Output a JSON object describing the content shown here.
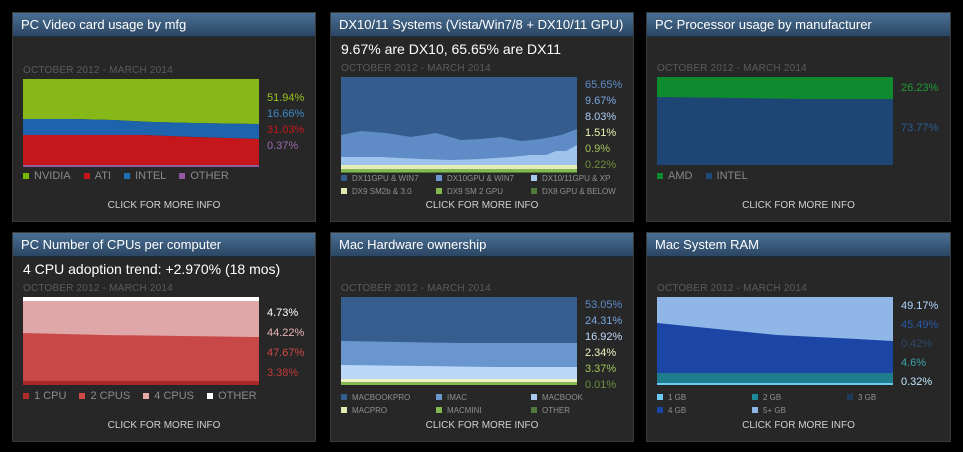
{
  "panels": [
    {
      "title": "PC Video card usage by mfg",
      "headline": "",
      "date_range": "OCTOBER 2012 - MARCH 2014",
      "values": [
        {
          "text": "51.94%",
          "color": "#9ac21d"
        },
        {
          "text": "16.66%",
          "color": "#3f87c8"
        },
        {
          "text": "31.03%",
          "color": "#c5171b"
        },
        {
          "text": "0.37%",
          "color": "#9b6aa8"
        }
      ],
      "legend": [
        {
          "label": "NVIDIA",
          "color": "#76b900"
        },
        {
          "label": "ATI",
          "color": "#c5171b"
        },
        {
          "label": "INTEL",
          "color": "#1f6fb7"
        },
        {
          "label": "OTHER",
          "color": "#8e5aa0"
        }
      ],
      "more": "CLICK FOR MORE INFO"
    },
    {
      "title": "DX10/11 Systems (Vista/Win7/8 + DX10/11 GPU)",
      "headline": "9.67% are DX10, 65.65% are DX11",
      "date_range": "OCTOBER 2012 - MARCH 2014",
      "values": [
        {
          "text": "65.65%",
          "color": "#5d8cc8"
        },
        {
          "text": "9.67%",
          "color": "#7aa7e0"
        },
        {
          "text": "8.03%",
          "color": "#a9cdf5"
        },
        {
          "text": "1.51%",
          "color": "#e8f0b0"
        },
        {
          "text": "0.9%",
          "color": "#a2c45b"
        },
        {
          "text": "0.22%",
          "color": "#6e8e3a"
        }
      ],
      "legend": [
        {
          "label": "DX11GPU & WIN7",
          "color": "#355d8c"
        },
        {
          "label": "DX10GPU & WIN7",
          "color": "#6d96cc"
        },
        {
          "label": "DX10/11GPU & XP",
          "color": "#a7c9ee"
        },
        {
          "label": "DX9 SM2b & 3.0",
          "color": "#dfe8b0"
        },
        {
          "label": "DX9 SM 2 GPU",
          "color": "#84b850"
        },
        {
          "label": "DX8 GPU & BELOW",
          "color": "#4f7a3a"
        }
      ],
      "more": "CLICK FOR MORE INFO"
    },
    {
      "title": "PC Processor usage by manufacturer",
      "headline": "",
      "date_range": "OCTOBER 2012 - MARCH 2014",
      "values": [
        {
          "text": "26.23%",
          "color": "#1e9a36"
        },
        {
          "text": "73.77%",
          "color": "#2b5f93"
        }
      ],
      "legend": [
        {
          "label": "AMD",
          "color": "#0d8a2d"
        },
        {
          "label": "INTEL",
          "color": "#1e4a78"
        }
      ],
      "more": "CLICK FOR MORE INFO"
    },
    {
      "title": "PC Number of CPUs per computer",
      "headline": "4 CPU adoption trend: +2.970% (18 mos)",
      "date_range": "OCTOBER 2012 - MARCH 2014",
      "values": [
        {
          "text": "4.73%",
          "color": "#ffffff"
        },
        {
          "text": "44.22%",
          "color": "#e8b5b5"
        },
        {
          "text": "47.67%",
          "color": "#d04848"
        },
        {
          "text": "3.38%",
          "color": "#c23a3a"
        }
      ],
      "legend": [
        {
          "label": "1 CPU",
          "color": "#b22a2a"
        },
        {
          "label": "2 CPUS",
          "color": "#d04848"
        },
        {
          "label": "4 CPUS",
          "color": "#e8aaaa"
        },
        {
          "label": "OTHER",
          "color": "#ffffff"
        }
      ],
      "more": "CLICK FOR MORE INFO"
    },
    {
      "title": "Mac Hardware ownership",
      "headline": "",
      "date_range": "OCTOBER 2012 - MARCH 2014",
      "values": [
        {
          "text": "53.05%",
          "color": "#5d8cc8"
        },
        {
          "text": "24.31%",
          "color": "#7aa7e0"
        },
        {
          "text": "16.92%",
          "color": "#bcd8f8"
        },
        {
          "text": "2.34%",
          "color": "#eef4c0"
        },
        {
          "text": "3.37%",
          "color": "#a2c45b"
        },
        {
          "text": "0.01%",
          "color": "#6e8e3a"
        }
      ],
      "legend": [
        {
          "label": "MACBOOKPRO",
          "color": "#355d8c"
        },
        {
          "label": "IMAC",
          "color": "#6d96cc"
        },
        {
          "label": "MACBOOK",
          "color": "#a7c9ee"
        },
        {
          "label": "MACPRO",
          "color": "#dfe8b0"
        },
        {
          "label": "MACMINI",
          "color": "#84b850"
        },
        {
          "label": "OTHER",
          "color": "#4f7a3a"
        }
      ],
      "more": "CLICK FOR MORE INFO"
    },
    {
      "title": "Mac System RAM",
      "headline": "",
      "date_range": "OCTOBER 2012 - MARCH 2014",
      "values": [
        {
          "text": "49.17%",
          "color": "#b0d4ff"
        },
        {
          "text": "45.49%",
          "color": "#2c5aa8"
        },
        {
          "text": "0.42%",
          "color": "#2f4a6a"
        },
        {
          "text": "4.6%",
          "color": "#3aa4a8"
        },
        {
          "text": "0.32%",
          "color": "#bfe8ff"
        }
      ],
      "legend": [
        {
          "label": "1 GB",
          "color": "#6ec9f0"
        },
        {
          "label": "2 GB",
          "color": "#1e8a98"
        },
        {
          "label": "3 GB",
          "color": "#1e3a5a"
        },
        {
          "label": "4 GB",
          "color": "#1a46a8"
        },
        {
          "label": "5+ GB",
          "color": "#8db6e8"
        }
      ],
      "more": "CLICK FOR MORE INFO"
    }
  ]
}
